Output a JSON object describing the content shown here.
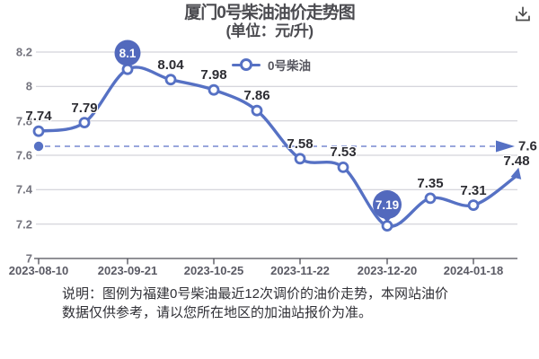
{
  "title": {
    "line1": "厦门0号柴油油价走势图",
    "line2": "(单位：元/升)"
  },
  "legend": {
    "series": "0号柴油"
  },
  "icons": {
    "download": "download-arrow-into-tray"
  },
  "chart_data": {
    "type": "line",
    "title": "厦门0号柴油油价走势图",
    "unit": "元/升",
    "series": [
      {
        "name": "0号柴油",
        "values": [
          7.74,
          7.79,
          8.1,
          8.04,
          7.98,
          7.86,
          7.58,
          7.53,
          7.19,
          7.35,
          7.31,
          7.48
        ]
      }
    ],
    "point_labels": [
      "7.74",
      "7.79",
      "8.1",
      "8.04",
      "7.98",
      "7.86",
      "7.58",
      "7.53",
      "7.19",
      "7.35",
      "7.31",
      "7.48"
    ],
    "x_tick_labels": [
      "2023-08-10",
      "2023-09-21",
      "2023-10-25",
      "2023-11-22",
      "2023-12-20",
      "2024-01-18"
    ],
    "x_tick_point_indices": [
      0,
      2,
      4,
      6,
      8,
      10
    ],
    "y_ticks": [
      8.2,
      8,
      7.8,
      7.6,
      7.4,
      7.2,
      7
    ],
    "ylim": [
      7,
      8.2
    ],
    "grid": true,
    "legend_position": "top",
    "max_highlight": {
      "index": 2,
      "label": "8.1"
    },
    "min_highlight": {
      "index": 8,
      "label": "7.19"
    },
    "reference_arrow": {
      "label": "7.6"
    }
  },
  "notes": {
    "line1": "说明：图例为福建0号柴油最近12次调价的油价走势，本网站油价",
    "line2": "数据仅供参考，请以您所在地区的加油站报价为准。"
  },
  "colors": {
    "line": "#5671c4",
    "balloon": "#5269bd",
    "dashed": "#8b99d8",
    "grid": "#c9c9d1",
    "axis": "#4f4f58",
    "marker_fill": "#ffffff",
    "data_label": "#2c2c32",
    "axis_label": "#74747e",
    "title": "#4b4b50",
    "note": "#303036"
  }
}
